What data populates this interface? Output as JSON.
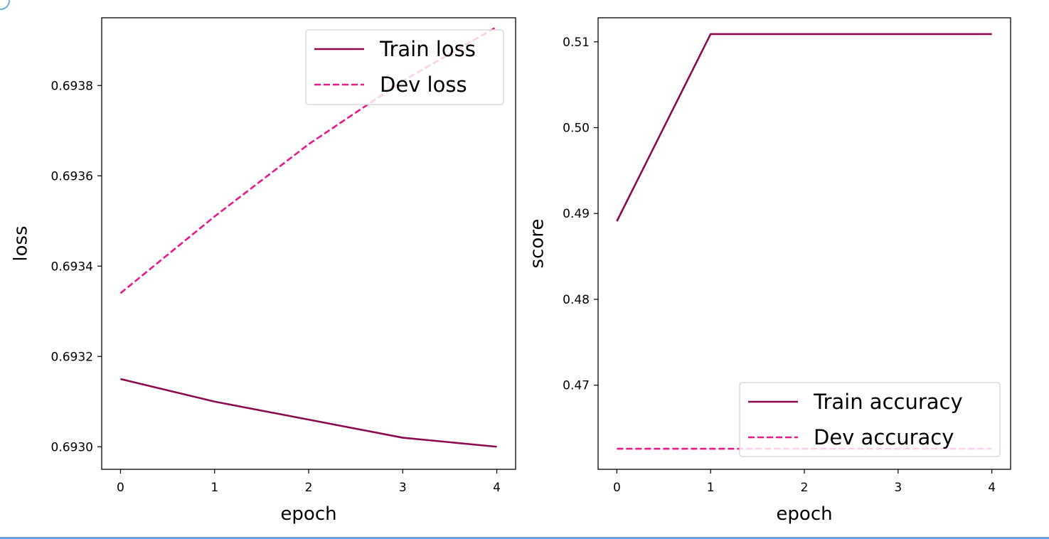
{
  "colors": {
    "train": "#8b0a50",
    "dev": "#e8198b",
    "frame": "#000000",
    "legend_border": "#d9d9d9"
  },
  "chart_data": [
    {
      "type": "line",
      "title": "",
      "xlabel": "epoch",
      "ylabel": "loss",
      "x": [
        0,
        1,
        2,
        3,
        4
      ],
      "xlim": [
        -0.2,
        4.2
      ],
      "ylim": [
        0.69295,
        0.69395
      ],
      "xticks": [
        0,
        1,
        2,
        3,
        4
      ],
      "xtick_labels": [
        "0",
        "1",
        "2",
        "3",
        "4"
      ],
      "yticks": [
        0.693,
        0.6932,
        0.6934,
        0.6936,
        0.6938
      ],
      "ytick_labels": [
        "0.6930",
        "0.6932",
        "0.6934",
        "0.6936",
        "0.6938"
      ],
      "legend_position": "upper right",
      "series": [
        {
          "name": "Train loss",
          "style": "solid",
          "color": "#8b0a50",
          "values": [
            0.69315,
            0.6931,
            0.69306,
            0.69302,
            0.693
          ]
        },
        {
          "name": "Dev loss",
          "style": "dashed",
          "color": "#e8198b",
          "values": [
            0.69334,
            0.69351,
            0.69367,
            0.69381,
            0.69393
          ]
        }
      ]
    },
    {
      "type": "line",
      "title": "",
      "xlabel": "epoch",
      "ylabel": "score",
      "x": [
        0,
        1,
        2,
        3,
        4
      ],
      "xlim": [
        -0.2,
        4.2
      ],
      "ylim": [
        0.4602,
        0.5128
      ],
      "xticks": [
        0,
        1,
        2,
        3,
        4
      ],
      "xtick_labels": [
        "0",
        "1",
        "2",
        "3",
        "4"
      ],
      "yticks": [
        0.47,
        0.48,
        0.49,
        0.5,
        0.51
      ],
      "ytick_labels": [
        "0.47",
        "0.48",
        "0.49",
        "0.50",
        "0.51"
      ],
      "legend_position": "lower right",
      "series": [
        {
          "name": "Train accuracy",
          "style": "solid",
          "color": "#8b0a50",
          "values": [
            0.4891,
            0.5109,
            0.5109,
            0.5109,
            0.5109
          ]
        },
        {
          "name": "Dev accuracy",
          "style": "dashed",
          "color": "#e8198b",
          "values": [
            0.4626,
            0.4626,
            0.4626,
            0.4626,
            0.4626
          ]
        }
      ]
    }
  ]
}
